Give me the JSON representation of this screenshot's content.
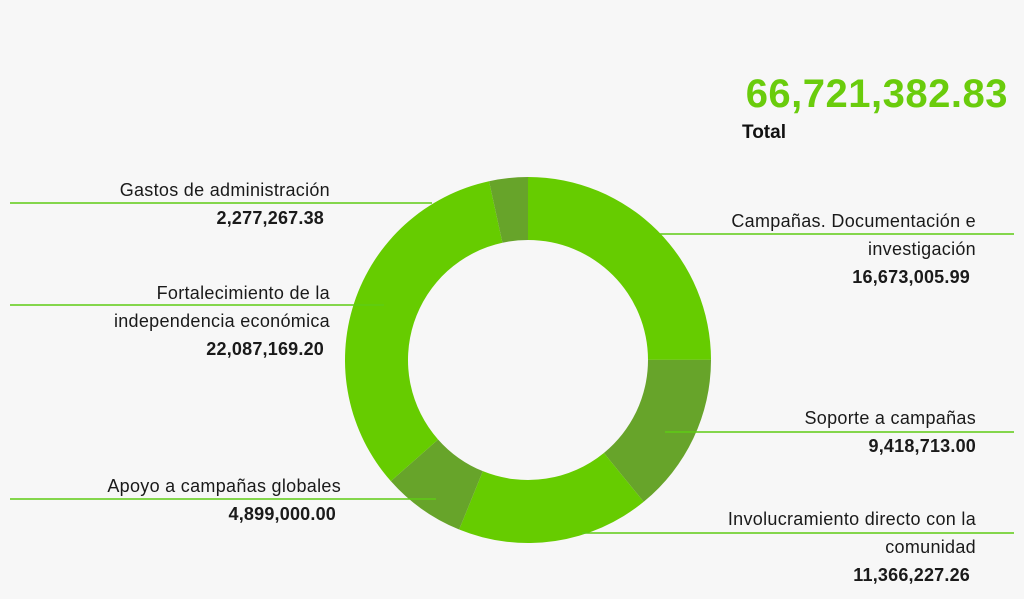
{
  "total": {
    "value": "66,721,382.83",
    "label": "Total"
  },
  "colors": {
    "accent": "#6acc0c",
    "slice_light": "#66cc00",
    "slice_dark": "#67a42a",
    "leader": "#5ecb14",
    "background": "#f7f7f7"
  },
  "chart_data": {
    "type": "pie",
    "donut": true,
    "title": "",
    "total": 66721382.83,
    "slices": [
      {
        "label": "Campañas. Documentación e investigación",
        "value": 16673005.99,
        "display": "16,673,005.99",
        "color": "#66cc00"
      },
      {
        "label": "Soporte a campañas",
        "value": 9418713.0,
        "display": "9,418,713.00",
        "color": "#67a42a"
      },
      {
        "label": "Involucramiento directo con la comunidad",
        "value": 11366227.26,
        "display": "11,366,227.26",
        "color": "#66cc00"
      },
      {
        "label": "Apoyo a campañas globales",
        "value": 4899000.0,
        "display": "4,899,000.00",
        "color": "#67a42a"
      },
      {
        "label": "Fortalecimiento de la independencia económica",
        "value": 22087169.2,
        "display": "22,087,169.20",
        "color": "#66cc00"
      },
      {
        "label": "Gastos de administración",
        "value": 2277267.38,
        "display": "2,277,267.38",
        "color": "#67a42a"
      }
    ]
  }
}
